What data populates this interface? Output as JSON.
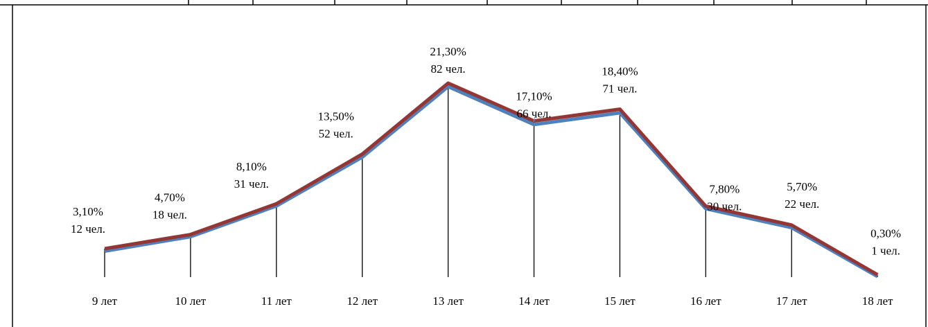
{
  "chart_data": {
    "type": "line",
    "categories": [
      "9 лет",
      "10 лет",
      "11 лет",
      "12 лет",
      "13 лет",
      "14 лет",
      "15 лет",
      "16 лет",
      "17 лет",
      "18 лет"
    ],
    "series": [
      {
        "color": "#4f81bd",
        "values": [
          3.1,
          4.7,
          8.1,
          13.5,
          21.3,
          17.1,
          18.4,
          7.8,
          5.7,
          0.3
        ],
        "value_labels": [
          "3,10%",
          "4,70%",
          "8,10%",
          "13,50%",
          "21,30%",
          "17,10%",
          "18,40%",
          "7,80%",
          "5,70%",
          "0,30%"
        ]
      },
      {
        "color": "#943634",
        "values": [
          12,
          18,
          31,
          52,
          82,
          66,
          71,
          30,
          22,
          1
        ],
        "value_labels": [
          "12 чел.",
          "18 чел.",
          "31 чел.",
          "52 чел.",
          "82 чел.",
          "66 чел.",
          "71 чел.",
          "30 чел.",
          "22 чел.",
          "1 чел."
        ]
      }
    ],
    "drop_lines": true
  }
}
